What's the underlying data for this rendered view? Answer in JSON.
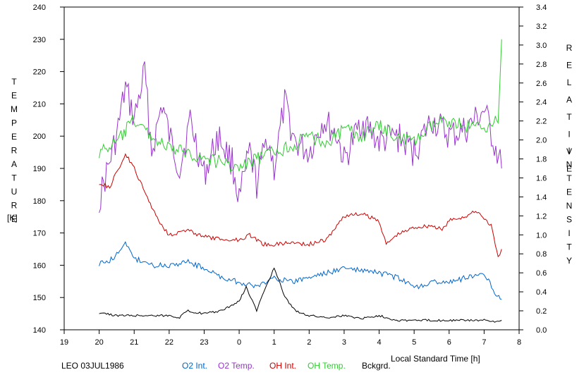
{
  "chart_data": {
    "type": "line",
    "station_label": "LEO 03JUL1986",
    "xlabel": "Local Standard Time [h]",
    "ylabel_left": "TEMPERATURE",
    "ylabel_left_unit": "[K]",
    "ylabel_right": "RELATIVE INTENSITY",
    "x_ticks": [
      "19",
      "20",
      "21",
      "22",
      "23",
      "0",
      "1",
      "2",
      "3",
      "4",
      "5",
      "6",
      "7",
      "8"
    ],
    "xlim_hours": [
      19,
      32
    ],
    "ylim_left": [
      140,
      240
    ],
    "ylim_right": [
      0.0,
      3.4
    ],
    "y_ticks_left": [
      "140",
      "150",
      "160",
      "170",
      "180",
      "190",
      "200",
      "210",
      "220",
      "230",
      "240"
    ],
    "y_ticks_right": [
      "0.0",
      "0.2",
      "0.4",
      "0.6",
      "0.8",
      "1.0",
      "1.2",
      "1.4",
      "1.6",
      "1.8",
      "2.0",
      "2.2",
      "2.4",
      "2.6",
      "2.8",
      "3.0",
      "3.2",
      "3.4"
    ],
    "legend": [
      {
        "label": "O2 Int.",
        "color": "#0066cc"
      },
      {
        "label": "O2 Temp.",
        "color": "#9933cc"
      },
      {
        "label": "OH Int.",
        "color": "#cc0000"
      },
      {
        "label": "OH Temp.",
        "color": "#33cc33"
      },
      {
        "label": "Bckgrd.",
        "color": "#000000"
      }
    ],
    "series": [
      {
        "name": "O2 Temp.",
        "axis": "left",
        "color": "#9933cc",
        "x": [
          20.0,
          20.5,
          20.75,
          21.0,
          21.3,
          21.5,
          21.8,
          22.0,
          22.3,
          22.6,
          23.0,
          23.4,
          23.8,
          24.0,
          24.3,
          24.5,
          24.8,
          25.0,
          25.3,
          25.6,
          26.0,
          26.4,
          26.8,
          27.0,
          27.5,
          28.0,
          28.5,
          29.0,
          29.5,
          30.0,
          30.5,
          31.0,
          31.5
        ],
        "values": [
          180,
          200,
          215,
          205,
          220,
          195,
          210,
          200,
          190,
          205,
          188,
          200,
          192,
          180,
          195,
          185,
          200,
          190,
          210,
          198,
          195,
          205,
          200,
          192,
          205,
          198,
          200,
          195,
          205,
          200,
          202,
          208,
          190
        ]
      },
      {
        "name": "OH Temp.",
        "axis": "left",
        "color": "#33cc33",
        "x": [
          20.0,
          20.5,
          21.0,
          21.5,
          22.0,
          22.5,
          23.0,
          23.5,
          24.0,
          24.5,
          25.0,
          25.5,
          26.0,
          26.5,
          27.0,
          27.5,
          28.0,
          28.5,
          29.0,
          29.5,
          30.0,
          30.5,
          31.0,
          31.4,
          31.5
        ],
        "values": [
          195,
          198,
          205,
          200,
          196,
          195,
          193,
          192,
          190,
          193,
          195,
          197,
          200,
          198,
          202,
          200,
          203,
          200,
          198,
          203,
          205,
          203,
          203,
          205,
          230
        ]
      },
      {
        "name": "OH Int.",
        "axis": "right",
        "color": "#cc0000",
        "x": [
          20.0,
          20.3,
          20.75,
          21.0,
          21.3,
          21.5,
          21.7,
          22.0,
          22.5,
          23.0,
          23.5,
          24.0,
          24.3,
          24.7,
          25.0,
          25.5,
          26.0,
          26.5,
          27.0,
          27.5,
          28.0,
          28.2,
          28.5,
          29.0,
          29.5,
          29.8,
          30.0,
          30.5,
          30.8,
          31.2,
          31.4,
          31.5
        ],
        "values": [
          1.55,
          1.5,
          1.85,
          1.7,
          1.45,
          1.3,
          1.15,
          1.0,
          1.05,
          0.98,
          0.95,
          0.95,
          1.0,
          0.9,
          0.9,
          0.92,
          0.9,
          0.95,
          1.2,
          1.22,
          1.15,
          0.9,
          1.0,
          1.08,
          1.1,
          1.05,
          1.15,
          1.2,
          1.25,
          1.1,
          0.75,
          0.85
        ]
      },
      {
        "name": "O2 Int.",
        "axis": "right",
        "color": "#0066cc",
        "x": [
          20.0,
          20.3,
          20.75,
          21.0,
          21.3,
          21.5,
          22.0,
          22.5,
          23.0,
          23.5,
          24.0,
          24.5,
          25.0,
          25.5,
          26.0,
          26.5,
          27.0,
          27.5,
          28.0,
          28.5,
          29.0,
          29.5,
          30.0,
          30.5,
          31.0,
          31.3,
          31.5
        ],
        "values": [
          0.7,
          0.72,
          0.9,
          0.75,
          0.72,
          0.68,
          0.68,
          0.72,
          0.65,
          0.55,
          0.5,
          0.45,
          0.55,
          0.5,
          0.55,
          0.6,
          0.65,
          0.62,
          0.6,
          0.55,
          0.45,
          0.5,
          0.5,
          0.55,
          0.6,
          0.4,
          0.32
        ]
      },
      {
        "name": "Bckgrd.",
        "axis": "right",
        "color": "#000000",
        "x": [
          20.0,
          20.5,
          21.0,
          21.5,
          22.0,
          22.3,
          22.5,
          23.0,
          23.5,
          24.0,
          24.2,
          24.5,
          24.7,
          25.0,
          25.3,
          25.6,
          26.0,
          26.5,
          27.0,
          27.5,
          28.0,
          28.5,
          29.0,
          29.5,
          30.0,
          30.5,
          31.0,
          31.3,
          31.5
        ],
        "values": [
          0.18,
          0.15,
          0.15,
          0.15,
          0.15,
          0.13,
          0.2,
          0.17,
          0.2,
          0.3,
          0.45,
          0.2,
          0.4,
          0.65,
          0.35,
          0.2,
          0.15,
          0.13,
          0.15,
          0.12,
          0.15,
          0.1,
          0.1,
          0.1,
          0.1,
          0.1,
          0.1,
          0.08,
          0.1
        ]
      }
    ]
  }
}
